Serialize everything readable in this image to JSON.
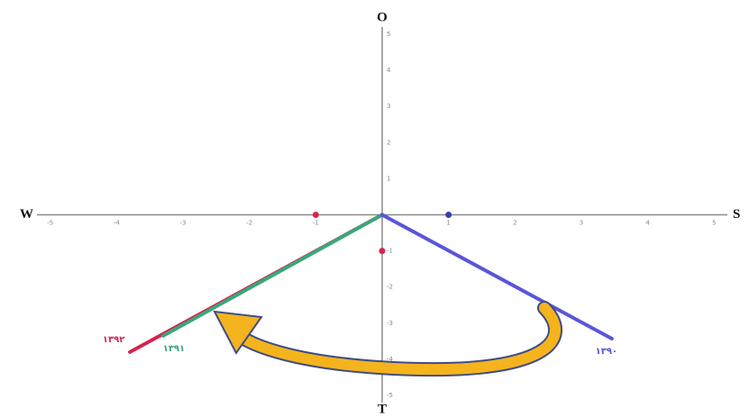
{
  "chart_data": {
    "type": "vector",
    "axis_labels": {
      "top": "O",
      "bottom": "T",
      "left": "W",
      "right": "S"
    },
    "xlim": [
      -5.2,
      5.2
    ],
    "ylim": [
      -5.2,
      5.2
    ],
    "xticks": [
      -5,
      -4,
      -3,
      -2,
      -1,
      1,
      2,
      3,
      4,
      5
    ],
    "yticks": [
      -5,
      -4,
      -3,
      -2,
      -1,
      1,
      2,
      3,
      4,
      5
    ],
    "grid": true,
    "series": [
      {
        "name": "۱۳۹۲",
        "color": "#d8234f",
        "x": [
          0,
          -3.8
        ],
        "values": [
          0,
          -3.8
        ]
      },
      {
        "name": "۱۳۹۱",
        "color": "#3aa67a",
        "x": [
          0,
          -3.3
        ],
        "values": [
          0,
          -3.35
        ]
      },
      {
        "name": "۱۳۹۰",
        "color": "#5a55d8",
        "x": [
          0,
          3.46
        ],
        "values": [
          0,
          -3.43
        ]
      }
    ],
    "points": [
      {
        "x": 1,
        "y": 0,
        "color": "#3b3bb0"
      },
      {
        "x": -1,
        "y": 0,
        "color": "#d8234f"
      },
      {
        "x": 0,
        "y": -1,
        "color": "#d8234f"
      }
    ]
  }
}
